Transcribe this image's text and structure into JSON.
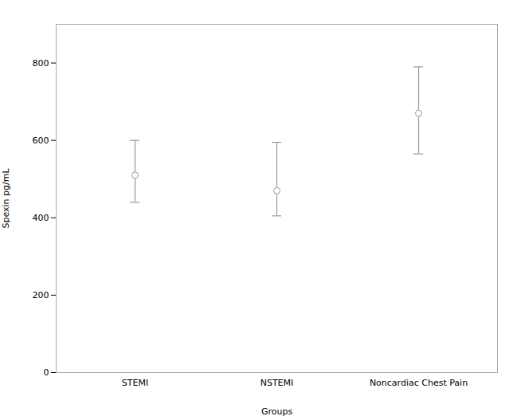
{
  "chart_data": {
    "type": "errorbar",
    "categories": [
      "STEMI",
      "NSTEMI",
      "Noncardiac Chest Pain"
    ],
    "values": [
      510,
      470,
      670
    ],
    "lower_errors": [
      70,
      65,
      105
    ],
    "upper_errors": [
      90,
      125,
      120
    ],
    "xlabel": "Groups",
    "ylabel": "Spexin pg/mL",
    "ylim": [
      0,
      900
    ],
    "yticks": [
      0,
      200,
      400,
      600,
      800
    ],
    "color": "#999999",
    "grid": false
  }
}
